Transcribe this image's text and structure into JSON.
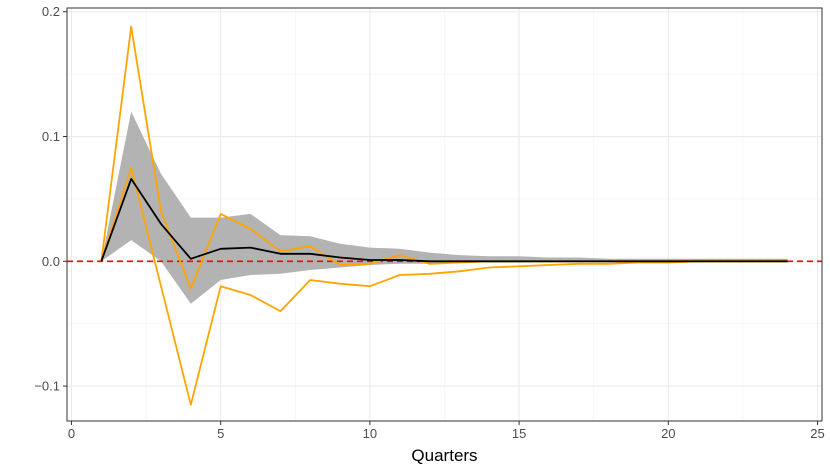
{
  "chart_data": {
    "type": "line",
    "xlabel": "Quarters",
    "ylabel": "",
    "xlim": [
      -0.15,
      25.15
    ],
    "ylim": [
      -0.128,
      0.203
    ],
    "x_ticks": [
      0,
      5,
      10,
      15,
      20,
      25
    ],
    "x_tick_labels": [
      "0",
      "5",
      "10",
      "15",
      "20",
      "25"
    ],
    "y_ticks": [
      -0.1,
      0.0,
      0.1,
      0.2
    ],
    "y_tick_labels": [
      "−0.1",
      "0.0",
      "0.1",
      "0.2"
    ],
    "grid": true,
    "reference_line": {
      "y": 0,
      "style": "dashed",
      "color": "#ff0000"
    },
    "x": [
      1,
      2,
      3,
      4,
      5,
      6,
      7,
      8,
      9,
      10,
      11,
      12,
      13,
      14,
      15,
      16,
      17,
      18,
      19,
      20,
      21,
      22,
      23,
      24
    ],
    "band": {
      "lower": [
        0.0,
        0.017,
        0.0,
        -0.034,
        -0.015,
        -0.011,
        -0.01,
        -0.007,
        -0.005,
        -0.003,
        -0.002,
        -0.002,
        -0.001,
        -0.001,
        -0.001,
        0.0,
        0.0,
        0.0,
        0.0,
        0.0,
        0.0,
        0.0,
        0.0,
        0.0
      ],
      "upper": [
        0.0,
        0.12,
        0.07,
        0.035,
        0.035,
        0.038,
        0.021,
        0.02,
        0.014,
        0.011,
        0.01,
        0.007,
        0.005,
        0.004,
        0.004,
        0.003,
        0.003,
        0.002,
        0.002,
        0.002,
        0.002,
        0.002,
        0.002,
        0.002
      ],
      "color": "#b3b3b3"
    },
    "series": [
      {
        "values": [
          0.0,
          0.066,
          0.03,
          0.002,
          0.01,
          0.011,
          0.006,
          0.006,
          0.003,
          0.001,
          0.001,
          0.0,
          0.0,
          0.0,
          0.0,
          0.0,
          0.0,
          0.0,
          0.0,
          0.0,
          0.0,
          0.0,
          0.0,
          0.0
        ],
        "color": "#000000"
      },
      {
        "values": [
          0.0,
          0.188,
          0.04,
          -0.022,
          0.038,
          0.026,
          0.008,
          0.012,
          -0.003,
          -0.002,
          0.005,
          -0.002,
          -0.001,
          0.0,
          0.0,
          0.0,
          0.0,
          0.0,
          0.0,
          0.0,
          0.001,
          0.001,
          0.001,
          0.001
        ],
        "color": "#ffa500"
      },
      {
        "values": [
          0.0,
          0.075,
          -0.02,
          -0.115,
          -0.02,
          -0.027,
          -0.04,
          -0.015,
          -0.018,
          -0.02,
          -0.011,
          -0.01,
          -0.008,
          -0.005,
          -0.004,
          -0.003,
          -0.002,
          -0.002,
          -0.001,
          -0.001,
          0.0,
          0.0,
          0.0,
          0.0
        ],
        "color": "#ffa500"
      }
    ]
  }
}
